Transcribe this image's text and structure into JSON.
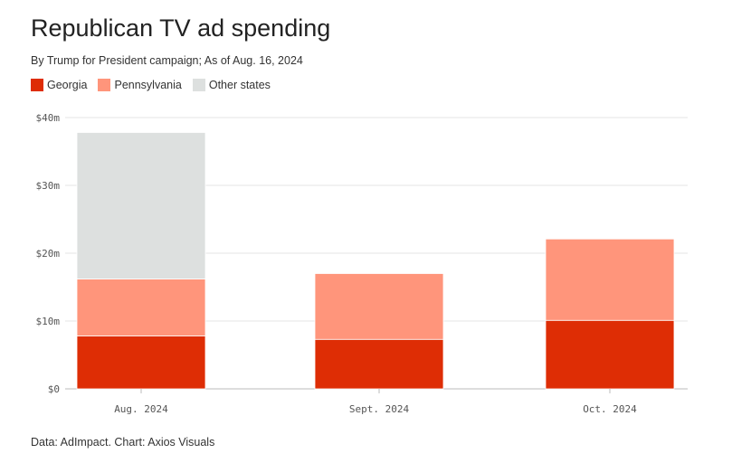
{
  "header": {
    "title": "Republican TV ad spending",
    "subtitle": "By Trump for President campaign; As of Aug. 16, 2024"
  },
  "footer": {
    "source": "Data: AdImpact. Chart: Axios Visuals"
  },
  "colors": {
    "georgia": "#de2d05",
    "pennsylvania": "#ff957b",
    "other": "#dde0df",
    "grid": "#e6e6e6"
  },
  "chart_data": {
    "type": "bar",
    "stacked": true,
    "title": "Republican TV ad spending",
    "subtitle": "By Trump for President campaign; As of Aug. 16, 2024",
    "categories": [
      "Aug. 2024",
      "Sept. 2024",
      "Oct. 2024"
    ],
    "series": [
      {
        "name": "Georgia",
        "color": "#de2d05",
        "values": [
          7.8,
          7.3,
          10.1
        ]
      },
      {
        "name": "Pennsylvania",
        "color": "#ff957b",
        "values": [
          8.4,
          9.7,
          12.0
        ]
      },
      {
        "name": "Other states",
        "color": "#dde0df",
        "values": [
          21.6,
          0,
          0
        ]
      }
    ],
    "y_ticks": [
      0,
      10,
      20,
      30,
      40
    ],
    "y_tick_labels": [
      "$0",
      "$10m",
      "$20m",
      "$30m",
      "$40m"
    ],
    "ylim": [
      0,
      40
    ],
    "xlabel": "",
    "ylabel": "",
    "grid": true,
    "legend_position": "top-left"
  }
}
